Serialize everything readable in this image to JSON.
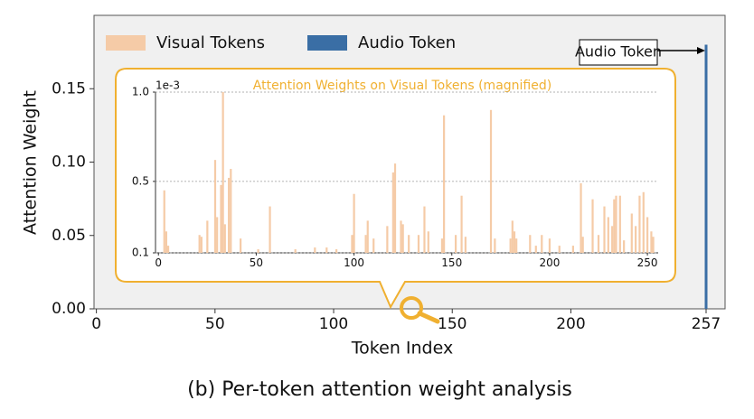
{
  "chart_data": [
    {
      "type": "bar",
      "xlabel": "Token Index",
      "ylabel": "Attention Weight",
      "caption": "(b) Per-token attention weight analysis",
      "xlim": [
        -1,
        265
      ],
      "xticks": [
        0,
        50,
        100,
        150,
        200,
        257
      ],
      "ylim": [
        0,
        0.2
      ],
      "yticks": [
        {
          "value": 0,
          "label": "0.00"
        },
        {
          "value": 0.05,
          "label": "0.05"
        },
        {
          "value": 0.1,
          "label": "0.10"
        },
        {
          "value": 0.15,
          "label": "0.15"
        }
      ],
      "legend": [
        {
          "label": "Visual Tokens",
          "color": "#f5cba7"
        },
        {
          "label": "Audio Token",
          "color": "#3a6ea5"
        }
      ],
      "series": [
        {
          "name": "Audio Token",
          "color": "#3a6ea5",
          "x": [
            257
          ],
          "values": [
            0.18
          ]
        }
      ],
      "annotation": "Audio Token"
    },
    {
      "type": "bar",
      "title": "Attention Weights on Visual Tokens (magnified)",
      "y_scale_label": "1e-3",
      "xlim": [
        -1.5,
        255.5
      ],
      "xticks": [
        0,
        50,
        100,
        150,
        200,
        250
      ],
      "ylim": [
        0.1,
        1.0
      ],
      "yticks": [
        0.1,
        0.5,
        {
          "value": 1.0,
          "label": "1.0"
        }
      ],
      "grid": true,
      "series": [
        {
          "name": "Visual Tokens",
          "color": "#f5cba7",
          "x": [
            3,
            4,
            5,
            21,
            22,
            25,
            29,
            30,
            32,
            33,
            34,
            36,
            37,
            42,
            51,
            57,
            70,
            80,
            86,
            91,
            99,
            100,
            106,
            107,
            110,
            117,
            120,
            121,
            124,
            125,
            128,
            133,
            136,
            138,
            145,
            146,
            152,
            155,
            157,
            170,
            172,
            180,
            181,
            182,
            183,
            190,
            193,
            196,
            200,
            205,
            212,
            216,
            217,
            222,
            225,
            228,
            230,
            232,
            233,
            234,
            236,
            238,
            242,
            244,
            246,
            248,
            250,
            252,
            253
          ],
          "values": [
            0.45,
            0.22,
            0.14,
            0.2,
            0.19,
            0.28,
            0.62,
            0.3,
            0.48,
            1.0,
            0.26,
            0.52,
            0.57,
            0.18,
            0.12,
            0.36,
            0.12,
            0.13,
            0.13,
            0.12,
            0.2,
            0.43,
            0.2,
            0.28,
            0.18,
            0.25,
            0.55,
            0.6,
            0.28,
            0.26,
            0.2,
            0.2,
            0.36,
            0.22,
            0.18,
            0.87,
            0.2,
            0.42,
            0.19,
            0.9,
            0.18,
            0.18,
            0.28,
            0.22,
            0.18,
            0.2,
            0.14,
            0.2,
            0.18,
            0.14,
            0.14,
            0.49,
            0.19,
            0.4,
            0.2,
            0.36,
            0.3,
            0.25,
            0.4,
            0.42,
            0.42,
            0.17,
            0.32,
            0.25,
            0.42,
            0.44,
            0.3,
            0.22,
            0.19
          ]
        }
      ]
    }
  ]
}
